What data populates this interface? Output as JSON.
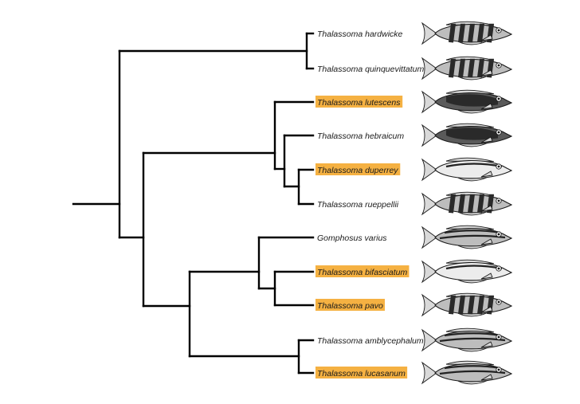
{
  "highlight_color": "#f5b142",
  "taxa": [
    {
      "name": "Thalassoma hardwicke",
      "highlighted": false,
      "icon": "fish-barred-icon"
    },
    {
      "name": "Thalassoma quinquevittatum",
      "highlighted": false,
      "icon": "fish-barred-icon"
    },
    {
      "name": "Thalassoma lutescens",
      "highlighted": true,
      "icon": "fish-dark-icon"
    },
    {
      "name": "Thalassoma hebraicum",
      "highlighted": false,
      "icon": "fish-dark-icon"
    },
    {
      "name": "Thalassoma duperrey",
      "highlighted": true,
      "icon": "fish-pale-icon"
    },
    {
      "name": "Thalassoma rueppellii",
      "highlighted": false,
      "icon": "fish-barred-icon"
    },
    {
      "name": "Gomphosus varius",
      "highlighted": false,
      "icon": "fish-striped-icon"
    },
    {
      "name": "Thalassoma bifasciatum",
      "highlighted": true,
      "icon": "fish-pale-icon"
    },
    {
      "name": "Thalassoma pavo",
      "highlighted": true,
      "icon": "fish-barred-icon"
    },
    {
      "name": "Thalassoma amblycephalum",
      "highlighted": false,
      "icon": "fish-striped-icon"
    },
    {
      "name": "Thalassoma lucasanum",
      "highlighted": true,
      "icon": "fish-striped-icon"
    }
  ]
}
